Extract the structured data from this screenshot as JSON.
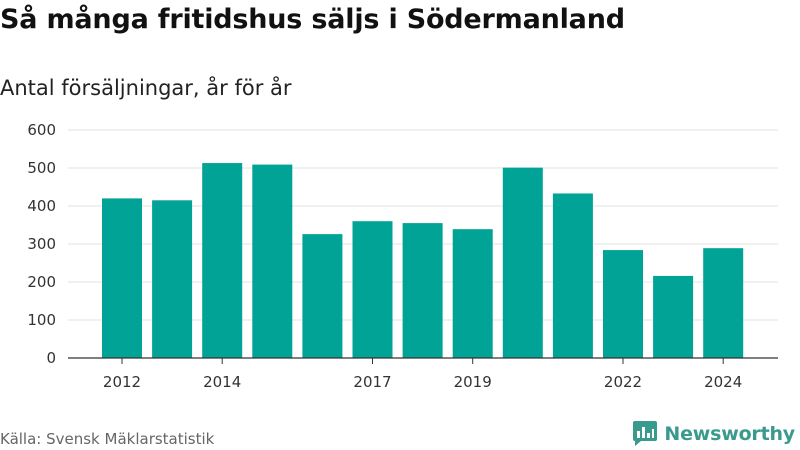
{
  "title": "Så många fritidshus säljs i Södermanland",
  "subtitle": "Antal försäljningar, år för år",
  "source": "Källa: Svensk Mäklarstatistik",
  "brand": {
    "name": "Newsworthy",
    "color": "#3a9a8d",
    "icon": "bar-chart-speech-bubble-icon"
  },
  "chart_data": {
    "type": "bar",
    "categories": [
      "2012",
      "2013",
      "2014",
      "2015",
      "2016",
      "2017",
      "2018",
      "2019",
      "2020",
      "2021",
      "2022",
      "2023",
      "2024"
    ],
    "values": [
      420,
      415,
      513,
      509,
      326,
      360,
      355,
      339,
      501,
      433,
      284,
      216,
      289
    ],
    "x_tick_labels": [
      "2012",
      "",
      "2014",
      "",
      "",
      "2017",
      "",
      "2019",
      "",
      "",
      "2022",
      "",
      "2024"
    ],
    "y_ticks": [
      "0",
      "100",
      "200",
      "300",
      "400",
      "500",
      "600"
    ],
    "ylim": [
      0,
      600
    ],
    "bar_color": "#00a396",
    "grid": true,
    "legend": "none"
  }
}
